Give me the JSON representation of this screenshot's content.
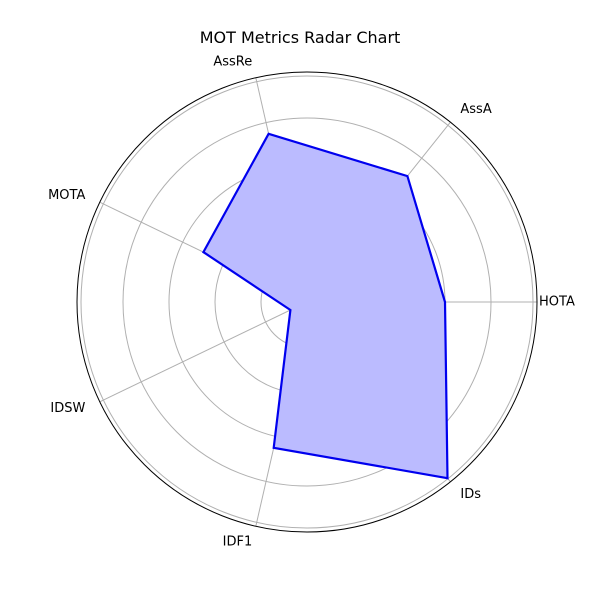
{
  "chart_data": {
    "type": "radar",
    "title": "MOT Metrics Radar Chart",
    "categories": [
      "HOTA",
      "AssA",
      "AssRe",
      "MOTA",
      "IDSW",
      "IDF1",
      "IDs"
    ],
    "values": [
      0.6,
      0.7,
      0.75,
      0.5,
      0.08,
      0.65,
      0.98
    ],
    "rlim": [
      0,
      1
    ],
    "rticks": [
      0.2,
      0.4,
      0.6,
      0.8,
      1.0
    ],
    "show_rtick_labels": false,
    "grid": true,
    "colors": {
      "line": "#0000ee",
      "fill": "#bbbbff",
      "grid": "#b0b0b0",
      "frame": "#000000"
    }
  }
}
